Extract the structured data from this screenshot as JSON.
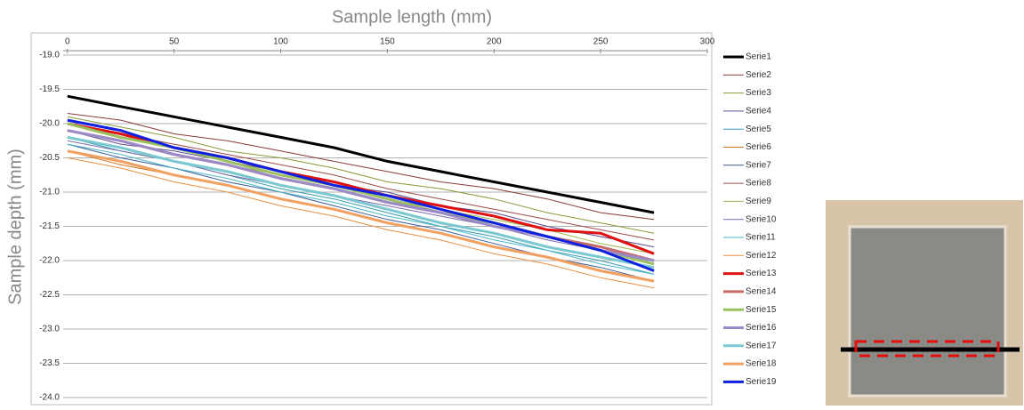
{
  "chart_data": {
    "type": "line",
    "title": "Sample length (mm)",
    "y_label": "Sample depth (mm)",
    "x": [
      0,
      25,
      50,
      75,
      100,
      125,
      150,
      175,
      200,
      225,
      250,
      275
    ],
    "xlim": [
      -17,
      300
    ],
    "xticks": [
      0,
      50,
      100,
      150,
      200,
      250,
      300
    ],
    "ylim": [
      -24,
      -19
    ],
    "yticks": [
      {
        "value": -19,
        "label": "-19.0"
      },
      -19.5,
      {
        "value": -20,
        "label": "-20.0"
      },
      -20.5,
      {
        "value": -21,
        "label": "-21.0"
      },
      -21.5,
      {
        "value": -22,
        "label": "-22.0"
      },
      -22.5,
      {
        "value": -23,
        "label": "-23.0"
      },
      -23.5,
      {
        "value": -24,
        "label": "-24.0"
      }
    ],
    "grid": true,
    "legend": "right",
    "series": [
      {
        "name": "Serie1",
        "color": "#000000",
        "line_width": 3,
        "values": [
          -19.6,
          -19.75,
          -19.9,
          -20.05,
          -20.2,
          -20.35,
          -20.55,
          -20.7,
          -20.85,
          -21.0,
          -21.15,
          -21.3
        ]
      },
      {
        "name": "Serie2",
        "color": "#8b3a3a",
        "line_width": 1,
        "values": [
          -19.85,
          -19.95,
          -20.15,
          -20.25,
          -20.4,
          -20.55,
          -20.7,
          -20.85,
          -20.95,
          -21.1,
          -21.3,
          -21.4
        ]
      },
      {
        "name": "Serie3",
        "color": "#8a9a3a",
        "line_width": 1,
        "values": [
          -19.9,
          -20.05,
          -20.2,
          -20.4,
          -20.5,
          -20.65,
          -20.85,
          -20.95,
          -21.1,
          -21.3,
          -21.45,
          -21.6
        ]
      },
      {
        "name": "Serie4",
        "color": "#5a4a8a",
        "line_width": 1,
        "values": [
          -20.1,
          -20.3,
          -20.4,
          -20.55,
          -20.7,
          -20.9,
          -21.0,
          -21.2,
          -21.3,
          -21.5,
          -21.65,
          -21.8
        ]
      },
      {
        "name": "Serie5",
        "color": "#3a9ab0",
        "line_width": 1,
        "values": [
          -20.2,
          -20.4,
          -20.55,
          -20.75,
          -20.95,
          -21.1,
          -21.3,
          -21.5,
          -21.65,
          -21.85,
          -22.0,
          -22.2
        ]
      },
      {
        "name": "Serie6",
        "color": "#d0782a",
        "line_width": 1,
        "values": [
          -20.4,
          -20.6,
          -20.75,
          -20.9,
          -21.1,
          -21.25,
          -21.45,
          -21.6,
          -21.8,
          -21.95,
          -22.15,
          -22.3
        ]
      },
      {
        "name": "Serie7",
        "color": "#3a5a9a",
        "line_width": 1,
        "values": [
          -20.3,
          -20.5,
          -20.65,
          -20.85,
          -21.0,
          -21.2,
          -21.4,
          -21.55,
          -21.75,
          -21.95,
          -22.1,
          -22.3
        ]
      },
      {
        "name": "Serie8",
        "color": "#a04a4a",
        "line_width": 1,
        "values": [
          -20.0,
          -20.15,
          -20.3,
          -20.45,
          -20.6,
          -20.75,
          -20.95,
          -21.1,
          -21.25,
          -21.4,
          -21.55,
          -21.7
        ]
      },
      {
        "name": "Serie9",
        "color": "#9ab84a",
        "line_width": 1,
        "values": [
          -20.1,
          -20.25,
          -20.45,
          -20.6,
          -20.75,
          -20.9,
          -21.1,
          -21.25,
          -21.4,
          -21.55,
          -21.75,
          -21.9
        ]
      },
      {
        "name": "Serie10",
        "color": "#7a6aaa",
        "line_width": 1,
        "values": [
          -20.25,
          -20.4,
          -20.55,
          -20.75,
          -20.9,
          -21.05,
          -21.2,
          -21.35,
          -21.5,
          -21.7,
          -21.85,
          -22.0
        ]
      },
      {
        "name": "Serie11",
        "color": "#4ab8c8",
        "line_width": 1,
        "values": [
          -20.3,
          -20.45,
          -20.65,
          -20.8,
          -21.0,
          -21.15,
          -21.35,
          -21.5,
          -21.7,
          -21.85,
          -22.05,
          -22.2
        ]
      },
      {
        "name": "Serie12",
        "color": "#e89040",
        "line_width": 1,
        "values": [
          -20.5,
          -20.65,
          -20.85,
          -21.0,
          -21.2,
          -21.35,
          -21.55,
          -21.7,
          -21.9,
          -22.05,
          -22.25,
          -22.4
        ]
      },
      {
        "name": "Serie13",
        "color": "#e01010",
        "line_width": 3,
        "values": [
          -20.0,
          -20.15,
          -20.35,
          -20.5,
          -20.7,
          -20.85,
          -21.05,
          -21.2,
          -21.35,
          -21.55,
          -21.6,
          -21.9
        ]
      },
      {
        "name": "Serie14",
        "color": "#c86a6a",
        "line_width": 3,
        "values": [
          -20.1,
          -20.25,
          -20.45,
          -20.6,
          -20.8,
          -20.95,
          -21.15,
          -21.3,
          -21.45,
          -21.65,
          -21.8,
          -22.0
        ]
      },
      {
        "name": "Serie15",
        "color": "#9ac060",
        "line_width": 3,
        "values": [
          -20.0,
          -20.2,
          -20.35,
          -20.55,
          -20.75,
          -20.9,
          -21.1,
          -21.3,
          -21.45,
          -21.65,
          -21.85,
          -22.05
        ]
      },
      {
        "name": "Serie16",
        "color": "#9a8ac8",
        "line_width": 3,
        "values": [
          -20.1,
          -20.25,
          -20.45,
          -20.6,
          -20.8,
          -20.95,
          -21.15,
          -21.3,
          -21.5,
          -21.65,
          -21.85,
          -22.0
        ]
      },
      {
        "name": "Serie17",
        "color": "#7ac8d0",
        "line_width": 3,
        "values": [
          -20.2,
          -20.35,
          -20.55,
          -20.7,
          -20.9,
          -21.05,
          -21.25,
          -21.45,
          -21.6,
          -21.8,
          -21.95,
          -22.1
        ]
      },
      {
        "name": "Serie18",
        "color": "#f0a060",
        "line_width": 3,
        "values": [
          -20.4,
          -20.55,
          -20.75,
          -20.9,
          -21.1,
          -21.25,
          -21.45,
          -21.6,
          -21.8,
          -21.95,
          -22.15,
          -22.3
        ]
      },
      {
        "name": "Serie19",
        "color": "#1020e0",
        "line_width": 3,
        "values": [
          -19.95,
          -20.1,
          -20.35,
          -20.5,
          -20.7,
          -20.9,
          -21.05,
          -21.25,
          -21.45,
          -21.65,
          -21.85,
          -22.15
        ]
      }
    ]
  }
}
